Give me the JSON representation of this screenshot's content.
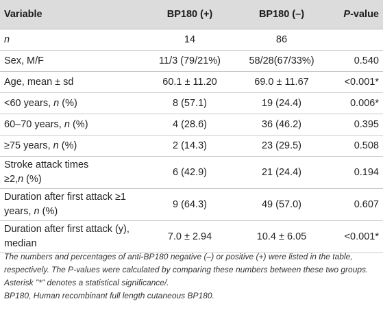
{
  "table": {
    "headers": {
      "variable": "Variable",
      "bp180_pos": "BP180 (+)",
      "bp180_neg": "BP180 (–)",
      "p_value_italic": "P",
      "p_value_rest": "-value"
    },
    "rows": [
      {
        "var_main": "",
        "var_italic": "n",
        "var_tail": "",
        "pos": "14",
        "neg": "86",
        "p": ""
      },
      {
        "var_main": "Sex, M/F",
        "var_italic": "",
        "var_tail": "",
        "pos": "11/3 (79/21%)",
        "neg": "58/28(67/33%)",
        "p": "0.540"
      },
      {
        "var_main": "Age, mean ± sd",
        "var_italic": "",
        "var_tail": "",
        "pos": "60.1 ± 11.20",
        "neg": "69.0 ± 11.67",
        "p": "<0.001*"
      },
      {
        "var_main": "<60 years, ",
        "var_italic": "n",
        "var_tail": " (%)",
        "pos": "8 (57.1)",
        "neg": "19 (24.4)",
        "p": "0.006*"
      },
      {
        "var_main": "60–70 years, ",
        "var_italic": "n",
        "var_tail": " (%)",
        "pos": "4 (28.6)",
        "neg": "36 (46.2)",
        "p": "0.395"
      },
      {
        "var_main": "≥75 years, ",
        "var_italic": "n",
        "var_tail": " (%)",
        "pos": "2 (14.3)",
        "neg": "23 (29.5)",
        "p": "0.508"
      },
      {
        "var_line1": "Stroke attack times",
        "var_line2_main": "≥2,",
        "var_line2_italic": "n",
        "var_line2_tail": " (%)",
        "pos": "6 (42.9)",
        "neg": "21 (24.4)",
        "p": "0.194"
      },
      {
        "var_line1": "Duration after first attack ≥1",
        "var_line2_main": "years, ",
        "var_line2_italic": "n",
        "var_line2_tail": " (%)",
        "pos": "9 (64.3)",
        "neg": "49 (57.0)",
        "p": "0.607"
      },
      {
        "var_line1": "Duration after first attack (y),",
        "var_line2_main": "median",
        "var_line2_italic": "",
        "var_line2_tail": "",
        "pos": "7.0 ± 2.94",
        "neg": "10.4 ± 6.05",
        "p": "<0.001*"
      }
    ]
  },
  "footnotes": {
    "note1": "The numbers and percentages of anti-BP180 negative (–) or positive (+) were listed in the table, respectively. The P-values were calculated by comparing these numbers between these two groups. Asterisk \"*\" denotes a statistical significance/.",
    "note2": "BP180, Human recombinant full length cutaneous BP180."
  }
}
